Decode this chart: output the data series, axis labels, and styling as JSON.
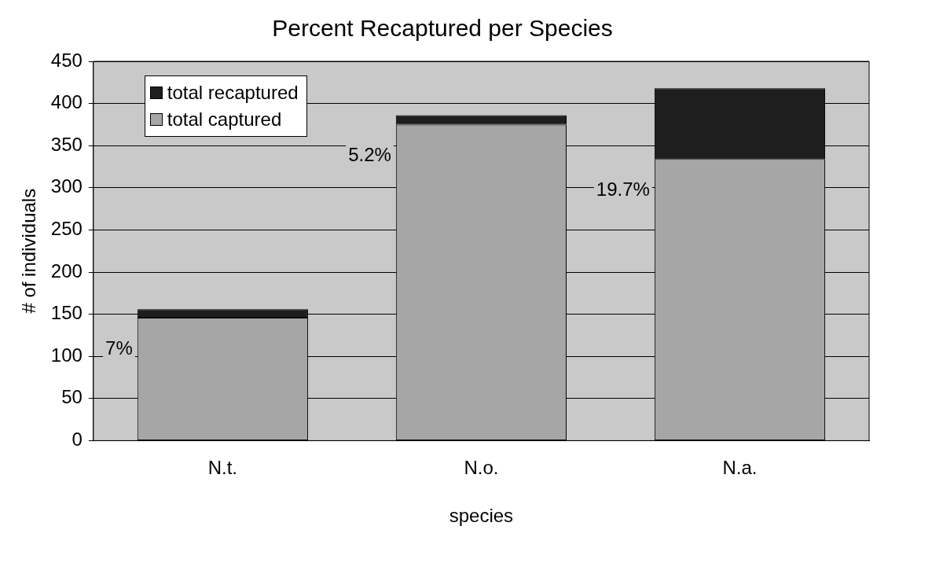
{
  "chart_data": {
    "type": "bar",
    "title": "Percent Recaptured per Species",
    "xlabel": "species",
    "ylabel": "# of individuals",
    "categories": [
      "N.t.",
      "N.o.",
      "N.a."
    ],
    "series": [
      {
        "name": "total captured",
        "color": "#a6a6a6",
        "values": [
          146,
          375,
          334
        ]
      },
      {
        "name": "total recaptured",
        "color": "#1e1e1e",
        "values": [
          10,
          11,
          84
        ]
      }
    ],
    "stacked": true,
    "ylim": [
      0,
      450
    ],
    "yticks": [
      0,
      50,
      100,
      150,
      200,
      250,
      300,
      350,
      400,
      450
    ],
    "grid": "y",
    "legend": "top left",
    "annotations": [
      "7%",
      "5.2%",
      "19.7%"
    ]
  }
}
